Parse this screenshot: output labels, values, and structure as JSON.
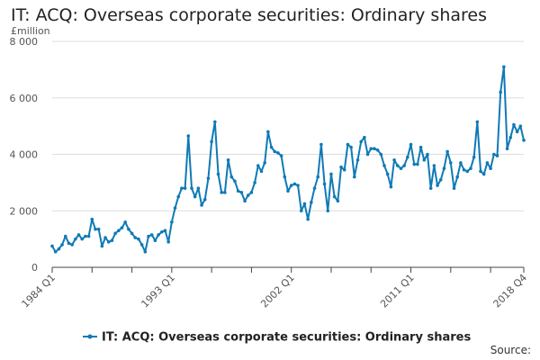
{
  "title": "IT: ACQ: Overseas corporate securities: Ordinary shares",
  "source_label": "Source:",
  "colors": {
    "series": "#0f7ab6",
    "grid": "#dddddd",
    "axis": "#444444",
    "text": "#555555"
  },
  "chart_data": {
    "type": "line",
    "title": "IT: ACQ: Overseas corporate securities: Ordinary shares",
    "ylabel": "£million",
    "xlabel": "",
    "ylim": [
      0,
      8000
    ],
    "yticks": [
      0,
      2000,
      4000,
      6000,
      8000
    ],
    "ytick_labels": [
      "0",
      "2 000",
      "4 000",
      "6 000",
      "8 000"
    ],
    "x_start": "1984 Q1",
    "x_end": "2018 Q4",
    "xtick_labels": [
      "1984 Q1",
      "1993 Q1",
      "2002 Q1",
      "2011 Q1",
      "2018 Q4"
    ],
    "grid": "horizontal",
    "legend_position": "bottom",
    "series": [
      {
        "name": "IT: ACQ: Overseas corporate securities: Ordinary shares",
        "values": [
          750,
          550,
          650,
          800,
          1100,
          850,
          800,
          1000,
          1150,
          1000,
          1100,
          1100,
          1700,
          1350,
          1350,
          750,
          1050,
          900,
          950,
          1200,
          1300,
          1400,
          1600,
          1350,
          1200,
          1050,
          1000,
          800,
          550,
          1100,
          1150,
          950,
          1150,
          1250,
          1300,
          900,
          1600,
          2100,
          2500,
          2800,
          2800,
          4650,
          2800,
          2500,
          2800,
          2200,
          2400,
          3150,
          4450,
          5150,
          3300,
          2650,
          2650,
          3800,
          3200,
          3050,
          2700,
          2650,
          2350,
          2550,
          2650,
          3000,
          3600,
          3400,
          3700,
          4800,
          4250,
          4100,
          4050,
          3950,
          3200,
          2700,
          2900,
          2950,
          2900,
          2000,
          2250,
          1700,
          2300,
          2800,
          3200,
          4350,
          2950,
          2000,
          3300,
          2500,
          2350,
          3550,
          3450,
          4350,
          4250,
          3200,
          3800,
          4450,
          4600,
          4000,
          4200,
          4200,
          4150,
          4000,
          3600,
          3300,
          2850,
          3800,
          3600,
          3500,
          3600,
          3900,
          4350,
          3650,
          3650,
          4250,
          3800,
          4000,
          2800,
          3600,
          2900,
          3100,
          3500,
          4100,
          3700,
          2800,
          3200,
          3700,
          3450,
          3400,
          3500,
          3900,
          5150,
          3400,
          3300,
          3700,
          3500,
          4000,
          3950,
          6200,
          7100,
          4200,
          4600,
          5050,
          4800,
          5000,
          4500
        ]
      }
    ]
  }
}
